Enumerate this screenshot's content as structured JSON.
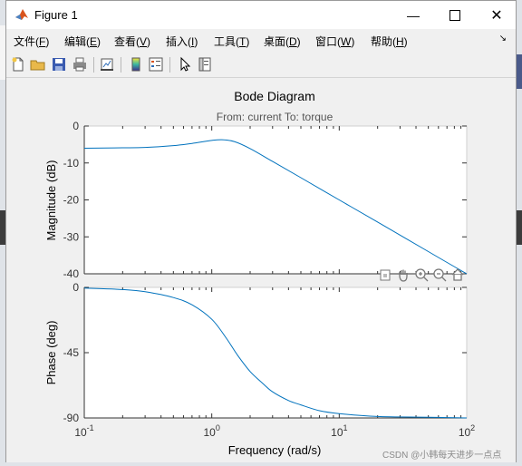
{
  "window": {
    "title": "Figure 1"
  },
  "menus": [
    {
      "label": "文件(",
      "key": "F",
      "suffix": ")"
    },
    {
      "label": "编辑(",
      "key": "E",
      "suffix": ")"
    },
    {
      "label": "查看(",
      "key": "V",
      "suffix": ")"
    },
    {
      "label": "插入(",
      "key": "I",
      "suffix": ")"
    },
    {
      "label": "工具(",
      "key": "T",
      "suffix": ")"
    },
    {
      "label": "桌面(",
      "key": "D",
      "suffix": ")"
    },
    {
      "label": "窗口(",
      "key": "W",
      "suffix": ")"
    },
    {
      "label": "帮助(",
      "key": "H",
      "suffix": ")"
    }
  ],
  "toolbar_icons": [
    "new-figure-icon",
    "open-file-icon",
    "save-icon",
    "print-icon",
    "link-plot-icon",
    "colorbar-icon",
    "legend-icon",
    "edit-plot-arrow-icon",
    "property-inspector-icon"
  ],
  "axes_toolbar_icons": [
    "export-icon",
    "pan-hand-icon",
    "zoom-in-icon",
    "zoom-out-icon",
    "home-icon"
  ],
  "colors": {
    "line": "#0072bd",
    "axes_bg": "#ffffff",
    "fig_bg": "#f0f0f0"
  },
  "plot": {
    "title": "Bode Diagram",
    "subtitle": "From: current  To: torque",
    "xlabel": "Frequency  (rad/s)"
  },
  "chart_data": {
    "type": "line",
    "xscale": "log",
    "xlim": [
      0.1,
      100
    ],
    "x_ticks": [
      {
        "value": 0.1,
        "base": "10",
        "exp": "-1"
      },
      {
        "value": 1,
        "base": "10",
        "exp": "0"
      },
      {
        "value": 10,
        "base": "10",
        "exp": "1"
      },
      {
        "value": 100,
        "base": "10",
        "exp": "2"
      }
    ],
    "magnitude": {
      "ylabel": "Magnitude (dB)",
      "ylim": [
        -40,
        0
      ],
      "yticks": [
        0,
        -10,
        -20,
        -30,
        -40
      ],
      "x": [
        0.1,
        0.2,
        0.3,
        0.5,
        0.7,
        1.0,
        1.2,
        1.5,
        2.0,
        3.0,
        5.0,
        10,
        20,
        50,
        100
      ],
      "y": [
        -6.0,
        -5.9,
        -5.8,
        -5.3,
        -4.7,
        -3.9,
        -3.7,
        -4.2,
        -6.1,
        -9.6,
        -14.0,
        -20.0,
        -26.0,
        -34.0,
        -40.0
      ]
    },
    "phase": {
      "ylabel": "Phase (deg)",
      "ylim": [
        -90,
        0
      ],
      "yticks": [
        0,
        -45,
        -90
      ],
      "x": [
        0.1,
        0.2,
        0.3,
        0.5,
        0.7,
        1.0,
        1.3,
        1.6,
        2.0,
        2.5,
        3.0,
        4.0,
        5.0,
        7.0,
        10,
        20,
        50,
        100
      ],
      "y": [
        -0.5,
        -1.5,
        -3,
        -7,
        -12,
        -22,
        -35,
        -47,
        -58,
        -66,
        -72,
        -78,
        -81,
        -85,
        -87,
        -89,
        -89.5,
        -90
      ]
    }
  },
  "watermark": "CSDN @小韩每天进步一点点"
}
